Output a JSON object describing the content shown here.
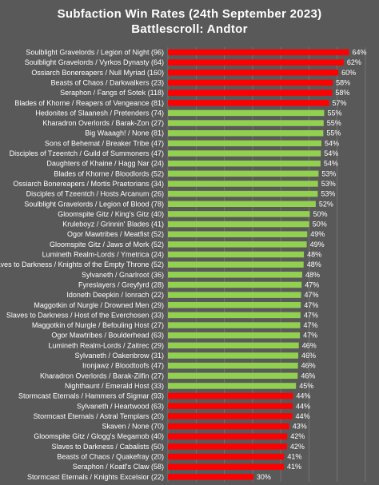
{
  "chart_data": {
    "type": "bar",
    "orientation": "horizontal",
    "title": "Subfaction Win Rates (24th September 2023)",
    "subtitle": "Battlescroll: Andtor",
    "xlim": [
      0,
      70
    ],
    "x_ticks": [
      "0%",
      "10%",
      "20%",
      "30%",
      "40%",
      "50%",
      "60%",
      "70%"
    ],
    "grid": true,
    "colors": {
      "above": "#ff0000",
      "neutral": "#92d050",
      "below": "#ff0000"
    },
    "categories": [
      "Soulblight Gravelords / Legion of Night (96)",
      "Soulblight Gravelords / Vyrkos Dynasty (64)",
      "Ossiarch Bonereapers / Null Myriad (160)",
      "Beasts of Chaos / Darkwalkers (23)",
      "Seraphon / Fangs of Sotek (118)",
      "Blades of Khorne / Reapers of Vengeance (81)",
      "Hedonites of Slaanesh / Pretenders (74)",
      "Kharadron Overlords / Barak-Zon (27)",
      "Big Waaagh! / None (81)",
      "Sons of Behemat / Breaker Tribe (47)",
      "Disciples of Tzeentch / Guild of Summoners (47)",
      "Daughters of Khaine / Hagg Nar (24)",
      "Blades of Khorne / Bloodlords (52)",
      "Ossiarch Bonereapers / Mortis Praetorians (34)",
      "Disciples of Tzeentch / Hosts Arcanum (26)",
      "Soulblight Gravelords / Legion of Blood (78)",
      "Gloomspite Gitz / King's Gitz (40)",
      "Kruleboyz / Grinnin' Blades (41)",
      "Ogor Mawtribes / Meatfist (52)",
      "Gloomspite Gitz / Jaws of Mork (52)",
      "Lumineth Realm-Lords / Ymetrica (24)",
      "Slaves to Darkness / Knights of the Empty Throne (52)",
      "Sylvaneth / Gnarlroot (36)",
      "Fyreslayers / Greyfyrd (28)",
      "Idoneth Deepkin / Ionrach (22)",
      "Maggotkin of Nurgle / Drowned Men (29)",
      "Slaves to Darkness / Host of the Everchosen (33)",
      "Maggotkin of Nurgle / Befouling Host (27)",
      "Ogor Mawtribes / Boulderhead (63)",
      "Lumineth Realm-Lords / Zaitrec (29)",
      "Sylvaneth / Oakenbrow (31)",
      "Ironjawz / Bloodtoofs (47)",
      "Kharadron Overlords / Barak-Zilfin (27)",
      "Nighthaunt / Emerald Host (33)",
      "Stormcast Eternals / Hammers of Sigmar (93)",
      "Sylvaneth / Heartwood (63)",
      "Stormcast Eternals / Astral Templars (20)",
      "Skaven / None (70)",
      "Gloomspite Gitz / Glogg's Megamob (40)",
      "Slaves to Darkness / Cabalists (50)",
      "Beasts of Chaos / Quakefray (20)",
      "Seraphon / Koatl's Claw (58)",
      "Stormcast Eternals / Knights Excelsior (22)"
    ],
    "values": [
      64.2,
      62.3,
      60.4,
      58.4,
      58.2,
      57.1,
      55.4,
      55.2,
      55.1,
      54.4,
      54.2,
      54.1,
      53.4,
      53.2,
      53.1,
      52.4,
      50.3,
      50.1,
      49.4,
      49.2,
      48.2,
      48.1,
      47.6,
      47.4,
      47.2,
      47.1,
      47.0,
      46.9,
      46.8,
      46.4,
      46.2,
      46.1,
      46.0,
      45.4,
      44.3,
      44.2,
      44.1,
      43.0,
      42.3,
      42.2,
      41.2,
      41.1,
      30.3
    ],
    "labels": [
      "64%",
      "62%",
      "60%",
      "58%",
      "58%",
      "57%",
      "55%",
      "55%",
      "55%",
      "54%",
      "54%",
      "54%",
      "53%",
      "53%",
      "53%",
      "52%",
      "50%",
      "50%",
      "49%",
      "49%",
      "48%",
      "48%",
      "48%",
      "47%",
      "47%",
      "47%",
      "47%",
      "47%",
      "47%",
      "46%",
      "46%",
      "46%",
      "46%",
      "45%",
      "44%",
      "44%",
      "44%",
      "43%",
      "42%",
      "42%",
      "41%",
      "41%",
      "30%"
    ],
    "bar_colors": [
      "above",
      "above",
      "above",
      "above",
      "above",
      "above",
      "neutral",
      "neutral",
      "neutral",
      "neutral",
      "neutral",
      "neutral",
      "neutral",
      "neutral",
      "neutral",
      "neutral",
      "neutral",
      "neutral",
      "neutral",
      "neutral",
      "neutral",
      "neutral",
      "neutral",
      "neutral",
      "neutral",
      "neutral",
      "neutral",
      "neutral",
      "neutral",
      "neutral",
      "neutral",
      "neutral",
      "neutral",
      "neutral",
      "below",
      "below",
      "below",
      "below",
      "below",
      "below",
      "below",
      "below",
      "below"
    ]
  }
}
